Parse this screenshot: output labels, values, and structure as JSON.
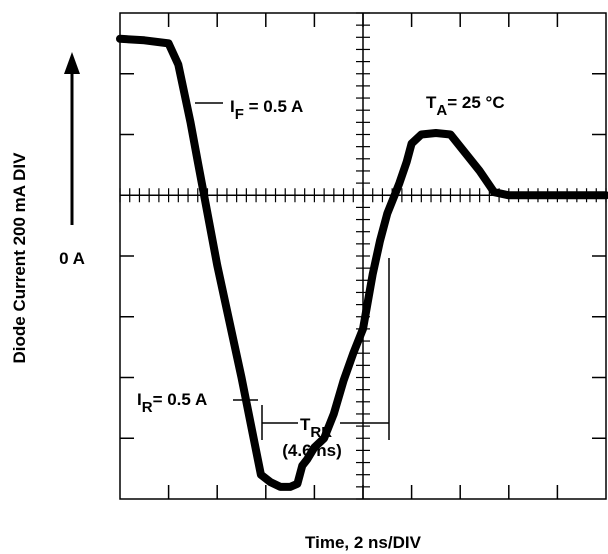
{
  "chart_data": {
    "type": "line",
    "title": "",
    "xlabel": "Time, 2 ns/DIV",
    "ylabel": "Diode Current 200 mA DIV",
    "grid": true,
    "x_divisions": 10,
    "y_divisions": 8,
    "x_units": "ns",
    "x_per_div": 2,
    "y_units": "mA",
    "y_per_div": 200,
    "xlim": [
      0,
      20
    ],
    "ylim": [
      -1000,
      600
    ],
    "zero_label": "0 A",
    "series": [
      {
        "x": [
          0,
          1.0,
          2.0,
          2.4,
          2.9,
          3.2,
          4.0,
          5.0,
          5.8,
          6.2,
          6.6,
          7.0,
          7.3,
          7.5,
          7.7,
          8.0,
          8.4,
          8.8,
          9.2,
          9.6,
          10.0,
          10.4,
          10.7,
          11.0,
          11.3,
          11.5,
          11.8,
          12.0,
          12.4,
          13.0,
          13.6,
          14.2,
          14.8,
          15.4,
          16.0,
          16.6,
          17.0,
          17.6,
          18.5,
          19.5,
          20.0
        ],
        "y": [
          515,
          510,
          500,
          430,
          240,
          110,
          -230,
          -600,
          -920,
          -945,
          -960,
          -960,
          -950,
          -890,
          -870,
          -830,
          -800,
          -720,
          -610,
          -520,
          -440,
          -260,
          -150,
          -60,
          0,
          40,
          110,
          170,
          200,
          205,
          200,
          140,
          80,
          10,
          0,
          0,
          0,
          0,
          0,
          0,
          0
        ]
      }
    ],
    "annotations": {
      "forward_current": {
        "prefix": "I",
        "sub": "F",
        "suffix": " = 0.5 A",
        "x": 3.0,
        "y": 510
      },
      "reverse_current": {
        "prefix": "I",
        "sub": "R",
        "suffix": "= 0.5 A",
        "x": 6.0,
        "y": -940
      },
      "temperature": {
        "prefix": "T",
        "sub": "A",
        "suffix": "= 25 °C"
      },
      "trr": {
        "prefix": "T",
        "sub": "RR",
        "value": "(4.6 ns)",
        "x_start": 5.8,
        "x_end": 11.0
      }
    }
  }
}
